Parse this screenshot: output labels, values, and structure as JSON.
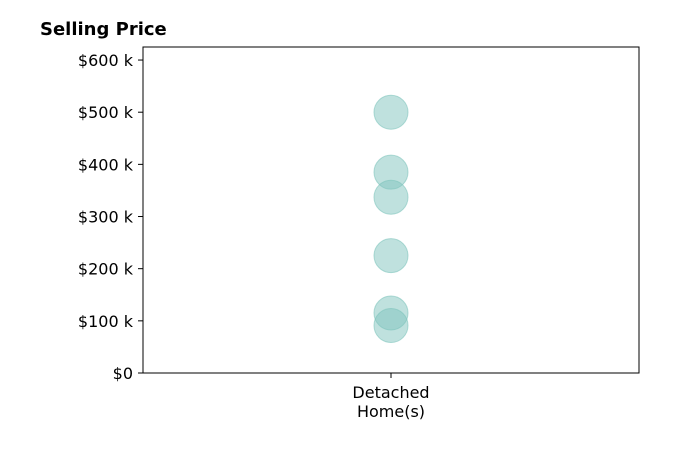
{
  "chart_data": {
    "type": "scatter",
    "title": "Selling Price",
    "xlabel": "",
    "ylabel": "",
    "categories": [
      "Detached\nHome(s)"
    ],
    "y_ticks": [
      {
        "value": 0,
        "label": "$0"
      },
      {
        "value": 100000,
        "label": "$100 k"
      },
      {
        "value": 200000,
        "label": "$200 k"
      },
      {
        "value": 300000,
        "label": "$300 k"
      },
      {
        "value": 400000,
        "label": "$400 k"
      },
      {
        "value": 500000,
        "label": "$500 k"
      },
      {
        "value": 600000,
        "label": "$600 k"
      }
    ],
    "ylim": [
      0,
      625000
    ],
    "series": [
      {
        "category": "Detached\nHome(s)",
        "values": [
          500000,
          385000,
          337000,
          225000,
          115000,
          91000
        ]
      }
    ],
    "marker_color": "#7fc4bd",
    "grid": false,
    "legend": "none"
  }
}
